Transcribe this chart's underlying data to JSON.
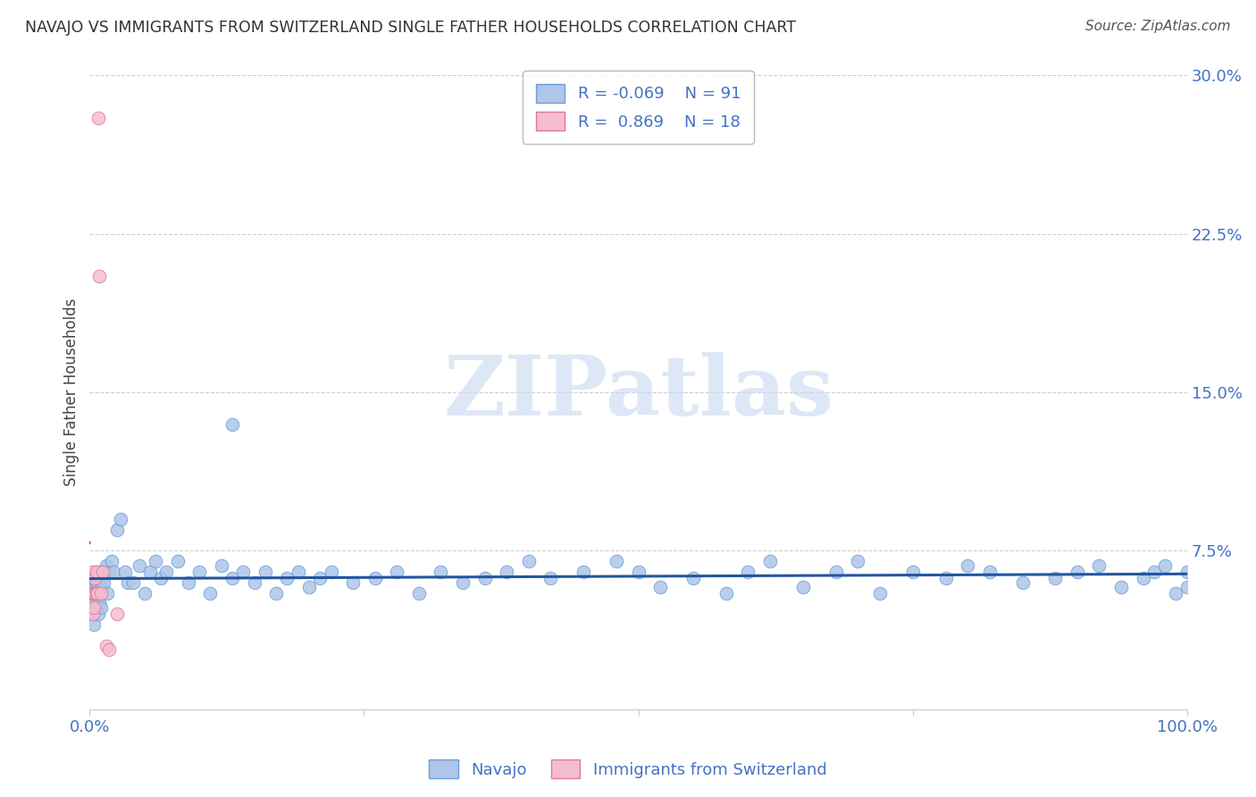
{
  "title": "NAVAJO VS IMMIGRANTS FROM SWITZERLAND SINGLE FATHER HOUSEHOLDS CORRELATION CHART",
  "source": "Source: ZipAtlas.com",
  "ylabel": "Single Father Households",
  "background_color": "#ffffff",
  "grid_color": "#d0d0d0",
  "navajo_color": "#aec6e8",
  "navajo_edge_color": "#6a9fd8",
  "swiss_color": "#f5bdd0",
  "swiss_edge_color": "#e07898",
  "navajo_line_color": "#2255a0",
  "swiss_line_color": "#d04468",
  "legend_navajo_label": "Navajo",
  "legend_swiss_label": "Immigrants from Switzerland",
  "navajo_R": -0.069,
  "navajo_N": 91,
  "swiss_R": 0.869,
  "swiss_N": 18,
  "xlim": [
    0.0,
    1.0
  ],
  "ylim": [
    0.0,
    0.3
  ],
  "yticks": [
    0.075,
    0.15,
    0.225,
    0.3
  ],
  "ytick_labels": [
    "7.5%",
    "15.0%",
    "22.5%",
    "30.0%"
  ],
  "xtick_positions": [
    0.0,
    0.25,
    0.5,
    0.75,
    1.0
  ],
  "xtick_labels": [
    "0.0%",
    "",
    "",
    "",
    "100.0%"
  ],
  "navajo_x": [
    0.002,
    0.003,
    0.003,
    0.004,
    0.004,
    0.005,
    0.005,
    0.005,
    0.006,
    0.006,
    0.006,
    0.007,
    0.007,
    0.008,
    0.008,
    0.009,
    0.009,
    0.01,
    0.01,
    0.011,
    0.012,
    0.013,
    0.015,
    0.016,
    0.018,
    0.02,
    0.022,
    0.025,
    0.028,
    0.032,
    0.035,
    0.04,
    0.045,
    0.05,
    0.055,
    0.06,
    0.065,
    0.07,
    0.08,
    0.09,
    0.1,
    0.11,
    0.12,
    0.13,
    0.14,
    0.15,
    0.16,
    0.17,
    0.18,
    0.19,
    0.2,
    0.21,
    0.22,
    0.24,
    0.26,
    0.28,
    0.3,
    0.32,
    0.34,
    0.36,
    0.38,
    0.4,
    0.42,
    0.45,
    0.48,
    0.5,
    0.52,
    0.55,
    0.58,
    0.6,
    0.62,
    0.65,
    0.68,
    0.7,
    0.72,
    0.75,
    0.78,
    0.8,
    0.82,
    0.85,
    0.88,
    0.9,
    0.92,
    0.94,
    0.96,
    0.97,
    0.98,
    0.99,
    1.0,
    1.0,
    0.13
  ],
  "navajo_y": [
    0.055,
    0.045,
    0.06,
    0.04,
    0.055,
    0.05,
    0.058,
    0.062,
    0.048,
    0.06,
    0.065,
    0.052,
    0.058,
    0.045,
    0.062,
    0.05,
    0.055,
    0.048,
    0.062,
    0.058,
    0.065,
    0.06,
    0.068,
    0.055,
    0.065,
    0.07,
    0.065,
    0.085,
    0.09,
    0.065,
    0.06,
    0.06,
    0.068,
    0.055,
    0.065,
    0.07,
    0.062,
    0.065,
    0.07,
    0.06,
    0.065,
    0.055,
    0.068,
    0.062,
    0.065,
    0.06,
    0.065,
    0.055,
    0.062,
    0.065,
    0.058,
    0.062,
    0.065,
    0.06,
    0.062,
    0.065,
    0.055,
    0.065,
    0.06,
    0.062,
    0.065,
    0.07,
    0.062,
    0.065,
    0.07,
    0.065,
    0.058,
    0.062,
    0.055,
    0.065,
    0.07,
    0.058,
    0.065,
    0.07,
    0.055,
    0.065,
    0.062,
    0.068,
    0.065,
    0.06,
    0.062,
    0.065,
    0.068,
    0.058,
    0.062,
    0.065,
    0.068,
    0.055,
    0.065,
    0.058,
    0.135
  ],
  "swiss_x": [
    0.001,
    0.002,
    0.003,
    0.003,
    0.004,
    0.004,
    0.005,
    0.005,
    0.006,
    0.006,
    0.007,
    0.008,
    0.009,
    0.01,
    0.012,
    0.015,
    0.018,
    0.025
  ],
  "swiss_y": [
    0.055,
    0.065,
    0.045,
    0.055,
    0.048,
    0.055,
    0.055,
    0.062,
    0.055,
    0.065,
    0.055,
    0.28,
    0.205,
    0.055,
    0.065,
    0.03,
    0.028,
    0.045
  ],
  "watermark": "ZIPatlas",
  "watermark_color": "#c8d8f0"
}
